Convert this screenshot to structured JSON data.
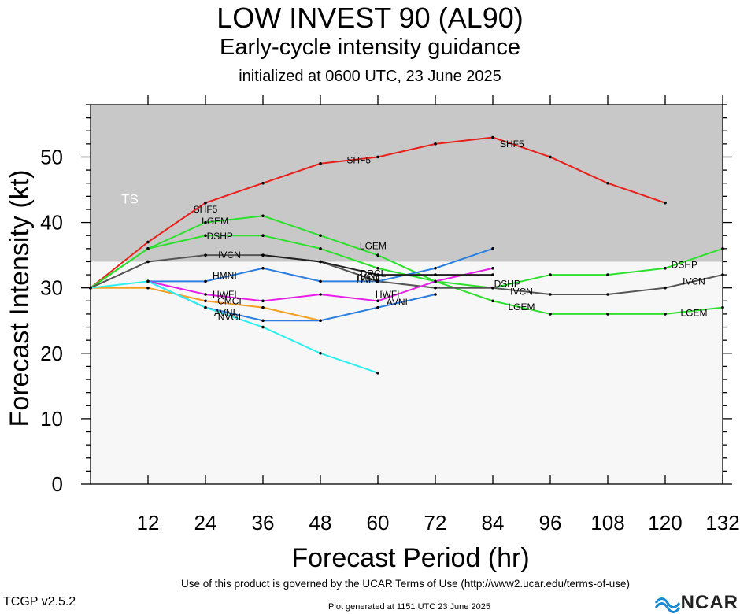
{
  "header": {
    "title": "LOW INVEST 90 (AL90)",
    "subtitle": "Early-cycle intensity guidance",
    "initialized": "initialized at 0600 UTC, 23 June 2025"
  },
  "footer": {
    "terms": "Use of this product is governed by the UCAR Terms of Use (http://www2.ucar.edu/terms-of-use)",
    "version": "TCGP v2.5.2",
    "generated": "Plot generated at 1151 UTC   23 June 2025",
    "logo_text": "NCAR"
  },
  "chart_data": {
    "type": "line",
    "xlabel": "Forecast Period (hr)",
    "ylabel": "Forecast Intensity (kt)",
    "xlim": [
      0,
      132
    ],
    "ylim": [
      0,
      58
    ],
    "x_ticks": [
      12,
      24,
      36,
      48,
      60,
      72,
      84,
      96,
      108,
      120,
      132
    ],
    "y_ticks": [
      0,
      10,
      20,
      30,
      40,
      50
    ],
    "band": {
      "label": "TS",
      "from": 34,
      "color": "#c8c8c8"
    },
    "below_band_color": "#f7f7f7",
    "series": [
      {
        "name": "SHF5",
        "color": "#e8201c",
        "points": [
          [
            0,
            30
          ],
          [
            12,
            37
          ],
          [
            24,
            43
          ],
          [
            36,
            46
          ],
          [
            48,
            49
          ],
          [
            60,
            50
          ],
          [
            72,
            52
          ],
          [
            84,
            53
          ],
          [
            96,
            50
          ],
          [
            108,
            46
          ],
          [
            120,
            43
          ]
        ],
        "labels": [
          [
            24,
            42
          ],
          [
            56,
            49.5
          ],
          [
            88,
            52
          ]
        ]
      },
      {
        "name": "LGEM",
        "color": "#2de02d",
        "points": [
          [
            0,
            30
          ],
          [
            12,
            36
          ],
          [
            24,
            40
          ],
          [
            36,
            41
          ],
          [
            48,
            38
          ],
          [
            60,
            35
          ],
          [
            72,
            31
          ],
          [
            84,
            28
          ],
          [
            96,
            26
          ],
          [
            108,
            26
          ],
          [
            120,
            26
          ],
          [
            132,
            27
          ]
        ],
        "labels": [
          [
            26,
            40.2
          ],
          [
            59,
            36.4
          ],
          [
            90,
            27.1
          ],
          [
            126,
            26.2
          ]
        ]
      },
      {
        "name": "DSHP",
        "color": "#2de02d",
        "points": [
          [
            0,
            30
          ],
          [
            12,
            36
          ],
          [
            24,
            38
          ],
          [
            36,
            38
          ],
          [
            48,
            36
          ],
          [
            60,
            33
          ],
          [
            72,
            31
          ],
          [
            84,
            30
          ],
          [
            96,
            32
          ],
          [
            108,
            32
          ],
          [
            120,
            33
          ],
          [
            132,
            36
          ]
        ],
        "labels": [
          [
            27,
            37.9
          ],
          [
            87,
            30.6
          ],
          [
            124,
            33.5
          ]
        ]
      },
      {
        "name": "IVCN",
        "color": "#555555",
        "points": [
          [
            0,
            30
          ],
          [
            12,
            34
          ],
          [
            24,
            35
          ],
          [
            36,
            35
          ],
          [
            48,
            34
          ],
          [
            60,
            31
          ],
          [
            72,
            30
          ],
          [
            84,
            30
          ],
          [
            96,
            29
          ],
          [
            108,
            29
          ],
          [
            120,
            30
          ],
          [
            132,
            32
          ]
        ],
        "labels": [
          [
            29,
            35
          ],
          [
            58,
            31.6
          ],
          [
            90,
            29.4
          ],
          [
            126,
            31
          ]
        ]
      },
      {
        "name": "HMNI",
        "color": "#2b7fe0",
        "points": [
          [
            12,
            31
          ],
          [
            24,
            31
          ],
          [
            36,
            33
          ],
          [
            48,
            31
          ],
          [
            60,
            31
          ],
          [
            72,
            33
          ],
          [
            84,
            36
          ]
        ],
        "labels": [
          [
            28,
            31.9
          ],
          [
            58,
            31.3
          ]
        ]
      },
      {
        "name": "HWFI",
        "color": "#e620e6",
        "points": [
          [
            12,
            31
          ],
          [
            24,
            29
          ],
          [
            36,
            28
          ],
          [
            48,
            29
          ],
          [
            60,
            28
          ],
          [
            72,
            31
          ],
          [
            84,
            33
          ]
        ],
        "labels": [
          [
            28,
            29
          ],
          [
            62,
            29
          ]
        ]
      },
      {
        "name": "CMCI",
        "color": "#f5a020",
        "points": [
          [
            0,
            30
          ],
          [
            12,
            30
          ],
          [
            24,
            28
          ],
          [
            36,
            27
          ],
          [
            48,
            25
          ]
        ],
        "labels": [
          [
            29,
            28
          ]
        ]
      },
      {
        "name": "AVNI",
        "color": "#2b7fe0",
        "points": [
          [
            12,
            31
          ],
          [
            24,
            27
          ],
          [
            36,
            25
          ],
          [
            48,
            25
          ],
          [
            60,
            27
          ],
          [
            72,
            29
          ]
        ],
        "labels": [
          [
            28,
            26.2
          ],
          [
            64,
            27.8
          ]
        ]
      },
      {
        "name": "NVGI",
        "color": "#2ef0f0",
        "points": [
          [
            0,
            30
          ],
          [
            12,
            31
          ],
          [
            24,
            27
          ],
          [
            36,
            24
          ],
          [
            48,
            20
          ],
          [
            60,
            17
          ]
        ],
        "labels": [
          [
            29,
            25.5
          ]
        ]
      },
      {
        "name": "DRCL",
        "color": "#222222",
        "points": [
          [
            36,
            35
          ],
          [
            48,
            34
          ],
          [
            60,
            32
          ],
          [
            72,
            32
          ],
          [
            84,
            32
          ]
        ],
        "labels": [
          [
            59,
            32.2
          ]
        ]
      }
    ]
  }
}
